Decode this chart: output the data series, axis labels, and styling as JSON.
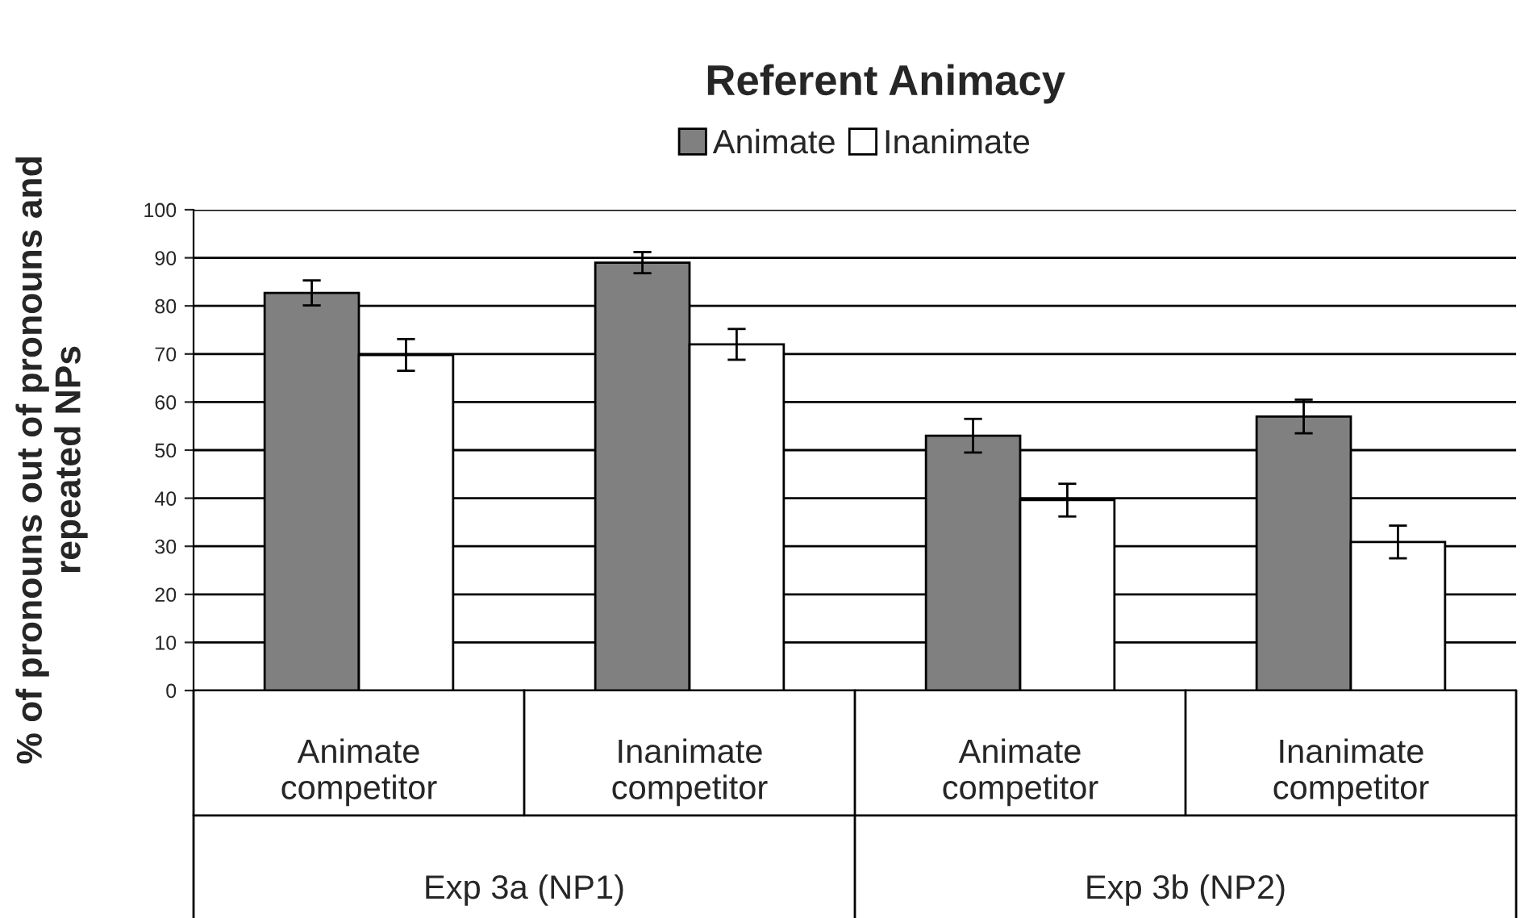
{
  "chart_data": {
    "type": "bar",
    "title": "Referent Animacy",
    "ylabel": "% of pronouns out of pronouns and\nrepeated NPs",
    "categories": [
      "Animate\ncompetitor",
      "Inanimate\ncompetitor",
      "Animate\ncompetitor",
      "Inanimate\ncompetitor"
    ],
    "series": [
      {
        "name": "Animate",
        "color": "#808080",
        "values": [
          82.7,
          89.0,
          53.0,
          57.0
        ],
        "errors": [
          2.6,
          2.2,
          3.5,
          3.5
        ]
      },
      {
        "name": "Inanimate",
        "color": "#ffffff",
        "values": [
          69.8,
          72.0,
          39.6,
          30.9
        ],
        "errors": [
          3.3,
          3.2,
          3.4,
          3.4
        ]
      }
    ],
    "annotations": [
      "Exp 3a (NP1)",
      "Exp 3b (NP2)"
    ],
    "ylim": [
      0,
      100
    ],
    "yticks": [
      0,
      10,
      20,
      30,
      40,
      50,
      60,
      70,
      80,
      90,
      100
    ],
    "grid": "y",
    "legend": "top"
  }
}
